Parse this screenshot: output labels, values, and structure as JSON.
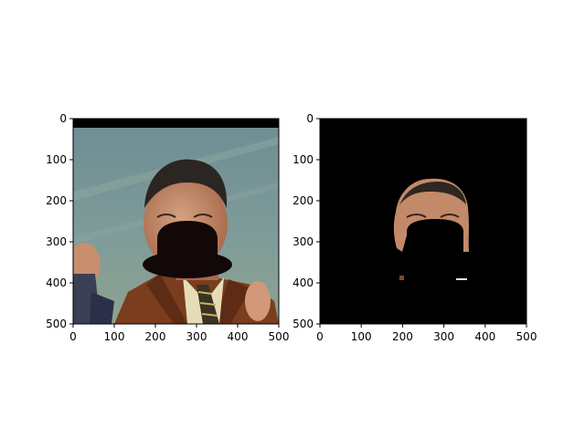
{
  "chart_data": [
    {
      "type": "image",
      "panel": "left",
      "content_description": "original photo with hat overlay",
      "xlim": [
        0,
        500
      ],
      "ylim": [
        500,
        0
      ],
      "xticks": [
        0,
        100,
        200,
        300,
        400,
        500
      ],
      "yticks": [
        0,
        100,
        200,
        300,
        400,
        500
      ],
      "xlabel": "",
      "ylabel": "",
      "grid": false
    },
    {
      "type": "image",
      "panel": "right",
      "content_description": "masked face region on black background",
      "xlim": [
        0,
        500
      ],
      "ylim": [
        500,
        0
      ],
      "xticks": [
        0,
        100,
        200,
        300,
        400,
        500
      ],
      "yticks": [
        0,
        100,
        200,
        300,
        400,
        500
      ],
      "xlabel": "",
      "ylabel": "",
      "grid": false
    }
  ],
  "colors": {
    "frame": "#000000",
    "background": "#ffffff",
    "sky_top": "#6f8f93",
    "sky_bottom": "#8aa39a",
    "jacket": "#7a3d1e",
    "skin": "#c48a6a",
    "hair": "#2b2622",
    "hat": "#120808"
  }
}
